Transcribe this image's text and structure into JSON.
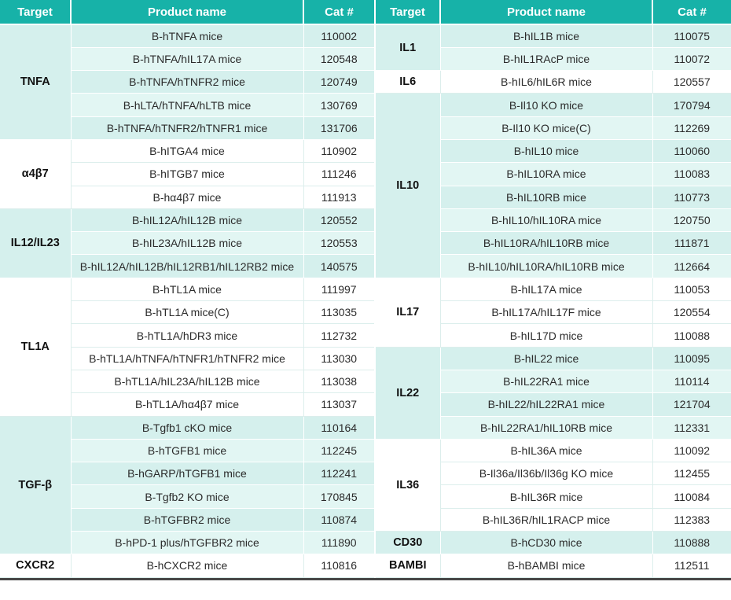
{
  "header": {
    "target": "Target",
    "product": "Product name",
    "cat": "Cat #"
  },
  "colors": {
    "header_bg": "#17b2a8",
    "row_teal": "#d5f0ed",
    "row_teal_alt": "#e2f6f3",
    "row_white": "#ffffff",
    "grid_line": "#dceeec",
    "bottom_rule": "#474747"
  },
  "tables": [
    {
      "groups": [
        {
          "target": "TNFA",
          "rows": [
            {
              "product": "B-hTNFA mice",
              "cat": "110002"
            },
            {
              "product": "B-hTNFA/hIL17A mice",
              "cat": "120548"
            },
            {
              "product": "B-hTNFA/hTNFR2 mice",
              "cat": "120749"
            },
            {
              "product": "B-hLTA/hTNFA/hLTB mice",
              "cat": "130769"
            },
            {
              "product": "B-hTNFA/hTNFR2/hTNFR1 mice",
              "cat": "131706"
            }
          ]
        },
        {
          "target": "α4β7",
          "rows": [
            {
              "product": "B-hITGA4 mice",
              "cat": "110902"
            },
            {
              "product": "B-hITGB7 mice",
              "cat": "111246"
            },
            {
              "product": "B-hα4β7 mice",
              "cat": "111913"
            }
          ]
        },
        {
          "target": "IL12/IL23",
          "rows": [
            {
              "product": "B-hIL12A/hIL12B mice",
              "cat": "120552"
            },
            {
              "product": "B-hIL23A/hIL12B mice",
              "cat": "120553"
            },
            {
              "product": "B-hIL12A/hIL12B/hIL12RB1/hIL12RB2 mice",
              "cat": "140575"
            }
          ]
        },
        {
          "target": "TL1A",
          "rows": [
            {
              "product": "B-hTL1A mice",
              "cat": "111997"
            },
            {
              "product": "B-hTL1A mice(C)",
              "cat": "113035"
            },
            {
              "product": "B-hTL1A/hDR3 mice",
              "cat": "112732"
            },
            {
              "product": "B-hTL1A/hTNFA/hTNFR1/hTNFR2 mice",
              "cat": "113030"
            },
            {
              "product": "B-hTL1A/hIL23A/hIL12B mice",
              "cat": "113038"
            },
            {
              "product": "B-hTL1A/hα4β7 mice",
              "cat": "113037"
            }
          ]
        },
        {
          "target": "TGF-β",
          "rows": [
            {
              "product": "B-Tgfb1 cKO mice",
              "cat": "110164"
            },
            {
              "product": "B-hTGFB1 mice",
              "cat": "112245"
            },
            {
              "product": "B-hGARP/hTGFB1 mice",
              "cat": "112241"
            },
            {
              "product": "B-Tgfb2 KO mice",
              "cat": "170845"
            },
            {
              "product": "B-hTGFBR2 mice",
              "cat": "110874"
            },
            {
              "product": "B-hPD-1 plus/hTGFBR2 mice",
              "cat": "111890"
            }
          ]
        },
        {
          "target": "CXCR2",
          "rows": [
            {
              "product": "B-hCXCR2 mice",
              "cat": "110816"
            }
          ]
        }
      ]
    },
    {
      "groups": [
        {
          "target": "IL1",
          "rows": [
            {
              "product": "B-hIL1B mice",
              "cat": "110075"
            },
            {
              "product": "B-hIL1RAcP mice",
              "cat": "110072"
            }
          ]
        },
        {
          "target": "IL6",
          "rows": [
            {
              "product": "B-hIL6/hIL6R mice",
              "cat": "120557"
            }
          ]
        },
        {
          "target": "IL10",
          "rows": [
            {
              "product": "B-Il10 KO mice",
              "cat": "170794"
            },
            {
              "product": "B-Il10 KO mice(C)",
              "cat": "112269"
            },
            {
              "product": "B-hIL10 mice",
              "cat": "110060"
            },
            {
              "product": "B-hIL10RA mice",
              "cat": "110083"
            },
            {
              "product": "B-hIL10RB mice",
              "cat": "110773"
            },
            {
              "product": "B-hIL10/hIL10RA mice",
              "cat": "120750"
            },
            {
              "product": "B-hIL10RA/hIL10RB mice",
              "cat": "111871"
            },
            {
              "product": "B-hIL10/hIL10RA/hIL10RB mice",
              "cat": "112664"
            }
          ]
        },
        {
          "target": "IL17",
          "rows": [
            {
              "product": "B-hIL17A mice",
              "cat": "110053"
            },
            {
              "product": "B-hIL17A/hIL17F mice",
              "cat": "120554"
            },
            {
              "product": "B-hIL17D mice",
              "cat": "110088"
            }
          ]
        },
        {
          "target": "IL22",
          "rows": [
            {
              "product": "B-hIL22 mice",
              "cat": "110095"
            },
            {
              "product": "B-hIL22RA1 mice",
              "cat": "110114"
            },
            {
              "product": "B-hIL22/hIL22RA1 mice",
              "cat": "121704"
            },
            {
              "product": "B-hIL22RA1/hIL10RB mice",
              "cat": "112331"
            }
          ]
        },
        {
          "target": "IL36",
          "rows": [
            {
              "product": "B-hIL36A mice",
              "cat": "110092"
            },
            {
              "product": "B-Il36a/Il36b/Il36g KO mice",
              "cat": "112455"
            },
            {
              "product": "B-hIL36R mice",
              "cat": "110084"
            },
            {
              "product": "B-hIL36R/hIL1RACP mice",
              "cat": "112383"
            }
          ]
        },
        {
          "target": "CD30",
          "rows": [
            {
              "product": "B-hCD30 mice",
              "cat": "110888"
            }
          ]
        },
        {
          "target": "BAMBI",
          "rows": [
            {
              "product": "B-hBAMBI mice",
              "cat": "112511"
            }
          ]
        }
      ]
    }
  ]
}
